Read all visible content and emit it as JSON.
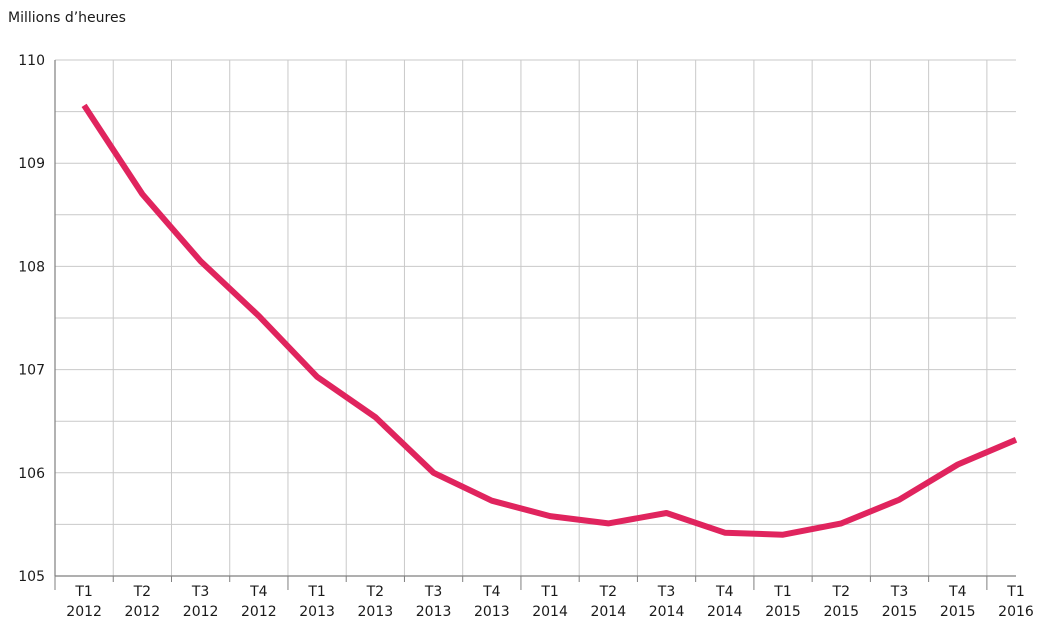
{
  "chart_data": {
    "type": "line",
    "ylabel": "Millions d’heures",
    "ylim": [
      105,
      110
    ],
    "yticks": [
      "105",
      "106",
      "107",
      "108",
      "109",
      "110"
    ],
    "grid": true,
    "categories": [
      [
        "T1",
        "2012"
      ],
      [
        "T2",
        "2012"
      ],
      [
        "T3",
        "2012"
      ],
      [
        "T4",
        "2012"
      ],
      [
        "T1",
        "2013"
      ],
      [
        "T2",
        "2013"
      ],
      [
        "T3",
        "2013"
      ],
      [
        "T4",
        "2013"
      ],
      [
        "T1",
        "2014"
      ],
      [
        "T2",
        "2014"
      ],
      [
        "T3",
        "2014"
      ],
      [
        "T4",
        "2014"
      ],
      [
        "T1",
        "2015"
      ],
      [
        "T2",
        "2015"
      ],
      [
        "T3",
        "2015"
      ],
      [
        "T4",
        "2015"
      ],
      [
        "T1",
        "2016"
      ]
    ],
    "series": [
      {
        "color": "#e0245e",
        "values": [
          109.56,
          108.7,
          108.05,
          107.52,
          106.93,
          106.54,
          106.0,
          105.73,
          105.58,
          105.51,
          105.61,
          105.42,
          105.4,
          105.51,
          105.74,
          106.08,
          106.32
        ]
      }
    ]
  }
}
